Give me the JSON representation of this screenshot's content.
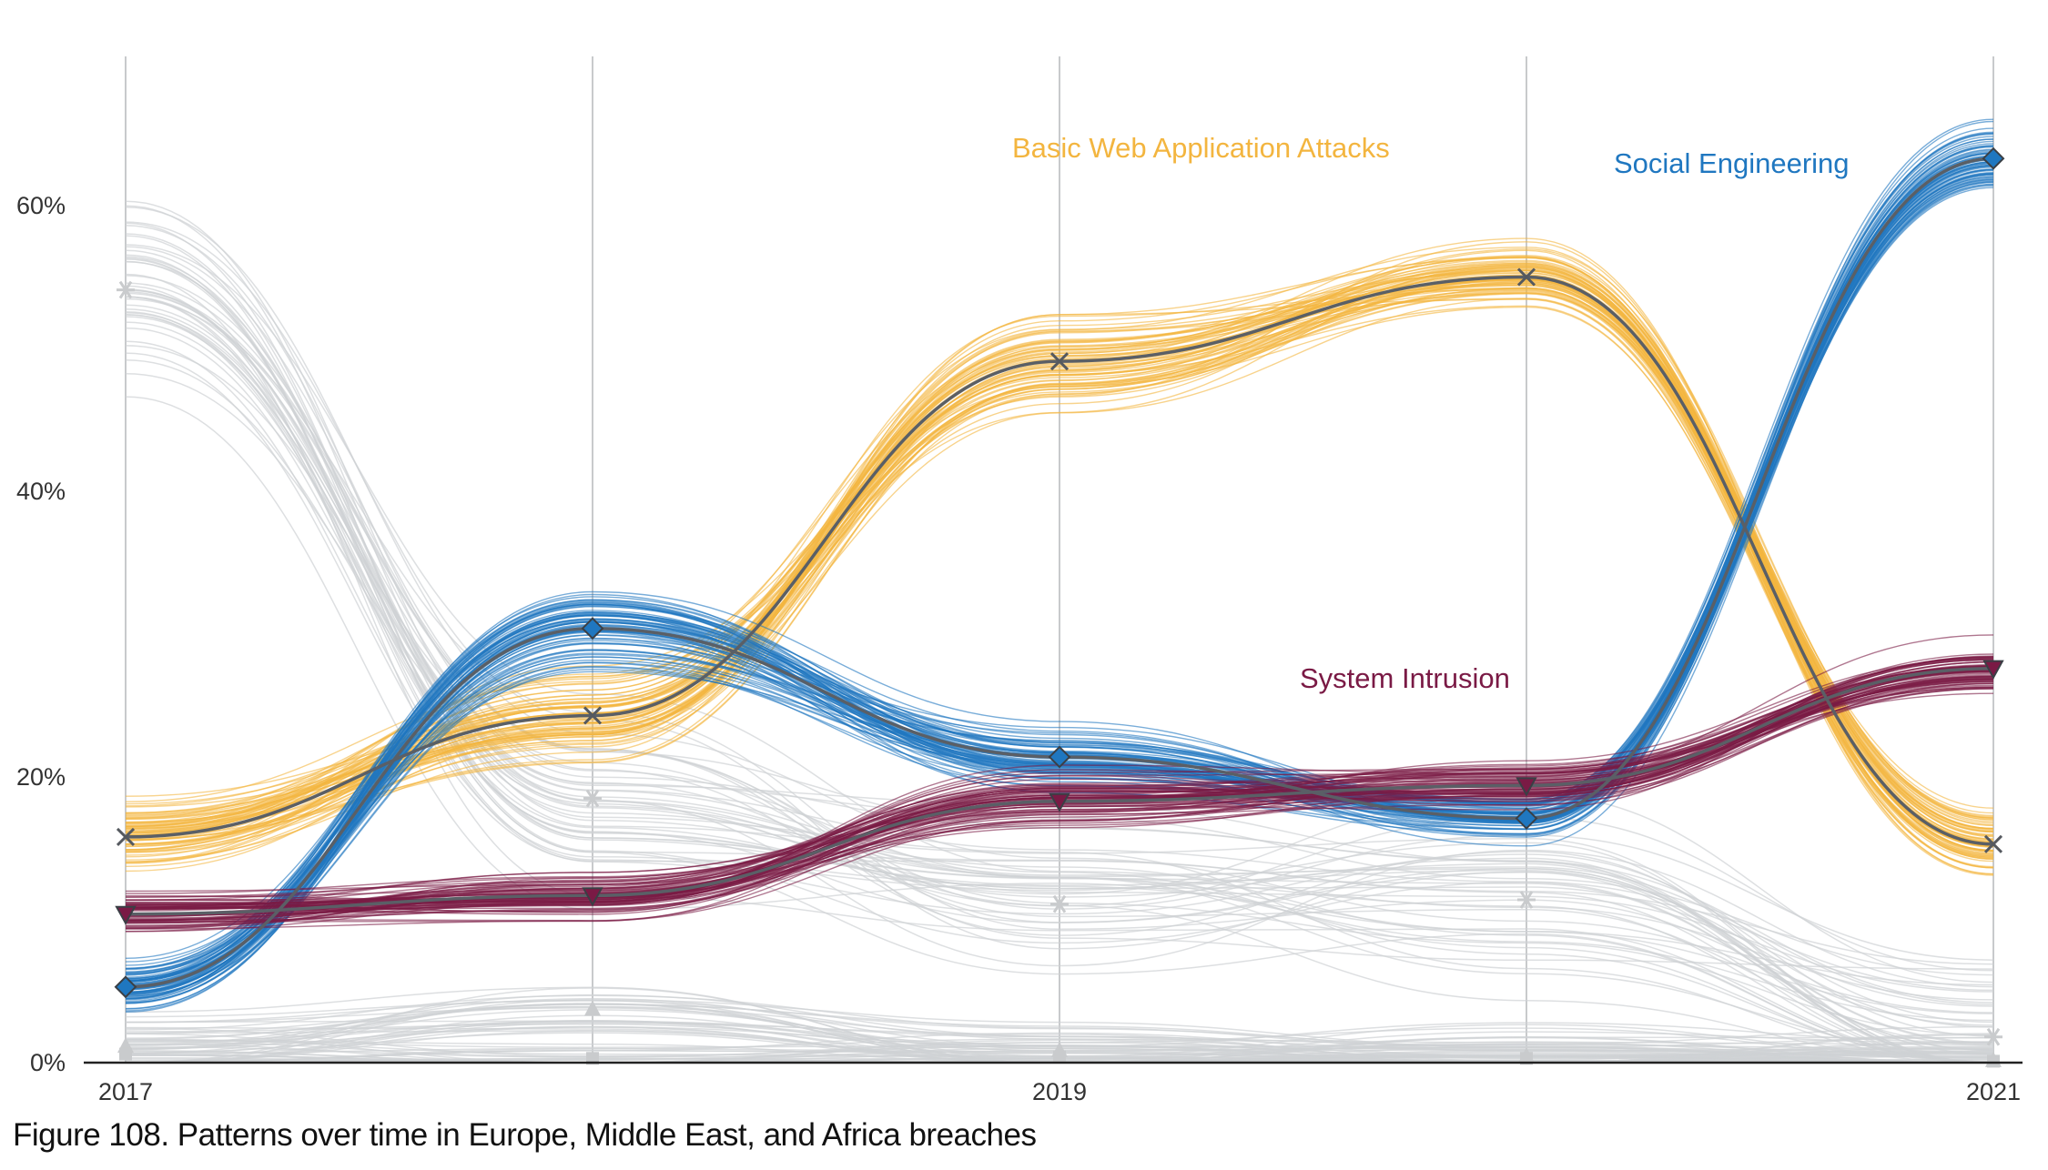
{
  "caption": "Figure 108. Patterns over time in Europe, Middle East, and Africa breaches",
  "chart_data": {
    "type": "line",
    "x": [
      2017,
      2018,
      2019,
      2020,
      2021
    ],
    "xtick_labels": [
      "2017",
      "2019",
      "2021"
    ],
    "xtick_values": [
      2017,
      2019,
      2021
    ],
    "ytick_labels": [
      "0%",
      "20%",
      "40%",
      "60%"
    ],
    "ytick_values": [
      0,
      20,
      40,
      60
    ],
    "ylim": [
      0,
      70
    ],
    "xlim": [
      2017,
      2021
    ],
    "grid": "vertical lines at each year",
    "colors": {
      "basic_web": "#f3b53f",
      "social": "#1f77c0",
      "intrusion": "#7a1a45",
      "median": "#5a5f66",
      "other": "#cfd2d4"
    },
    "series": [
      {
        "name": "Basic Web Application Attacks",
        "values": [
          15.8,
          24.3,
          49.1,
          55.0,
          15.3
        ],
        "marker": "x"
      },
      {
        "name": "Social Engineering",
        "values": [
          5.3,
          30.4,
          21.4,
          17.1,
          63.3
        ],
        "marker": "diamond"
      },
      {
        "name": "System Intrusion",
        "values": [
          10.4,
          11.7,
          18.3,
          19.4,
          27.6
        ],
        "marker": "triangle-down"
      }
    ],
    "other_series_markers": [
      {
        "values": [
          54.1,
          18.5,
          11.1,
          11.4,
          1.8
        ],
        "marker": "asterisk"
      },
      {
        "values": [
          1.2,
          3.8,
          0.9,
          0.5,
          0.2
        ],
        "marker": "triangle-up"
      },
      {
        "values": [
          0.6,
          0.3,
          0.4,
          0.3,
          0.1
        ],
        "marker": "square"
      }
    ]
  }
}
